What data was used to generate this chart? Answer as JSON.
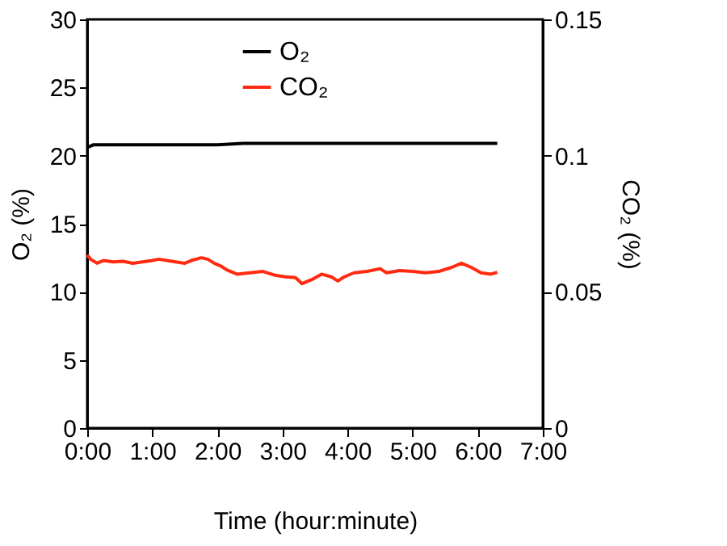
{
  "chart_data": {
    "type": "line",
    "xlabel": "Time (hour:minute)",
    "ylabel": "O₂ (%)",
    "y2label": "CO₂ (%)",
    "xlim": [
      0,
      7
    ],
    "xticks": [
      {
        "value": 0,
        "label": "0:00"
      },
      {
        "value": 1,
        "label": "1:00"
      },
      {
        "value": 2,
        "label": "2:00"
      },
      {
        "value": 3,
        "label": "3:00"
      },
      {
        "value": 4,
        "label": "4:00"
      },
      {
        "value": 5,
        "label": "5:00"
      },
      {
        "value": 6,
        "label": "6:00"
      },
      {
        "value": 7,
        "label": "7:00"
      }
    ],
    "ylim": [
      0,
      30
    ],
    "yticks": [
      0,
      5,
      10,
      15,
      20,
      25,
      30
    ],
    "y2lim": [
      0,
      0.15
    ],
    "y2ticks": [
      0,
      0.05,
      0.1,
      0.15
    ],
    "grid": false,
    "legend": "top",
    "line_style": "solid",
    "marker": "none",
    "series": [
      {
        "name": "O₂",
        "color": "#000000",
        "x": [
          0,
          0.1,
          0.3,
          1.0,
          2.0,
          2.4,
          3.0,
          4.0,
          5.0,
          6.0,
          6.3
        ],
        "values": [
          20.6,
          20.8,
          20.8,
          20.8,
          20.8,
          20.9,
          20.9,
          20.9,
          20.9,
          20.9,
          20.9
        ]
      },
      {
        "name": "CO₂",
        "color": "#ff2a10",
        "axis": "y2",
        "x": [
          0,
          0.05,
          0.15,
          0.25,
          0.4,
          0.55,
          0.7,
          0.85,
          1.0,
          1.1,
          1.3,
          1.5,
          1.6,
          1.75,
          1.85,
          1.95,
          2.05,
          2.15,
          2.3,
          2.5,
          2.7,
          2.9,
          3.05,
          3.2,
          3.3,
          3.45,
          3.6,
          3.75,
          3.85,
          3.95,
          4.1,
          4.3,
          4.5,
          4.6,
          4.8,
          5.0,
          5.2,
          5.4,
          5.6,
          5.75,
          5.9,
          6.05,
          6.2,
          6.3
        ],
        "values": [
          0.0635,
          0.062,
          0.0605,
          0.0615,
          0.061,
          0.0612,
          0.0605,
          0.061,
          0.0615,
          0.062,
          0.0612,
          0.0605,
          0.0615,
          0.0625,
          0.062,
          0.0605,
          0.0595,
          0.058,
          0.0565,
          0.057,
          0.0575,
          0.056,
          0.0555,
          0.0552,
          0.053,
          0.0545,
          0.0565,
          0.0555,
          0.054,
          0.0555,
          0.057,
          0.0575,
          0.0585,
          0.057,
          0.0578,
          0.0575,
          0.057,
          0.0575,
          0.059,
          0.0605,
          0.059,
          0.057,
          0.0565,
          0.0572
        ]
      }
    ]
  }
}
